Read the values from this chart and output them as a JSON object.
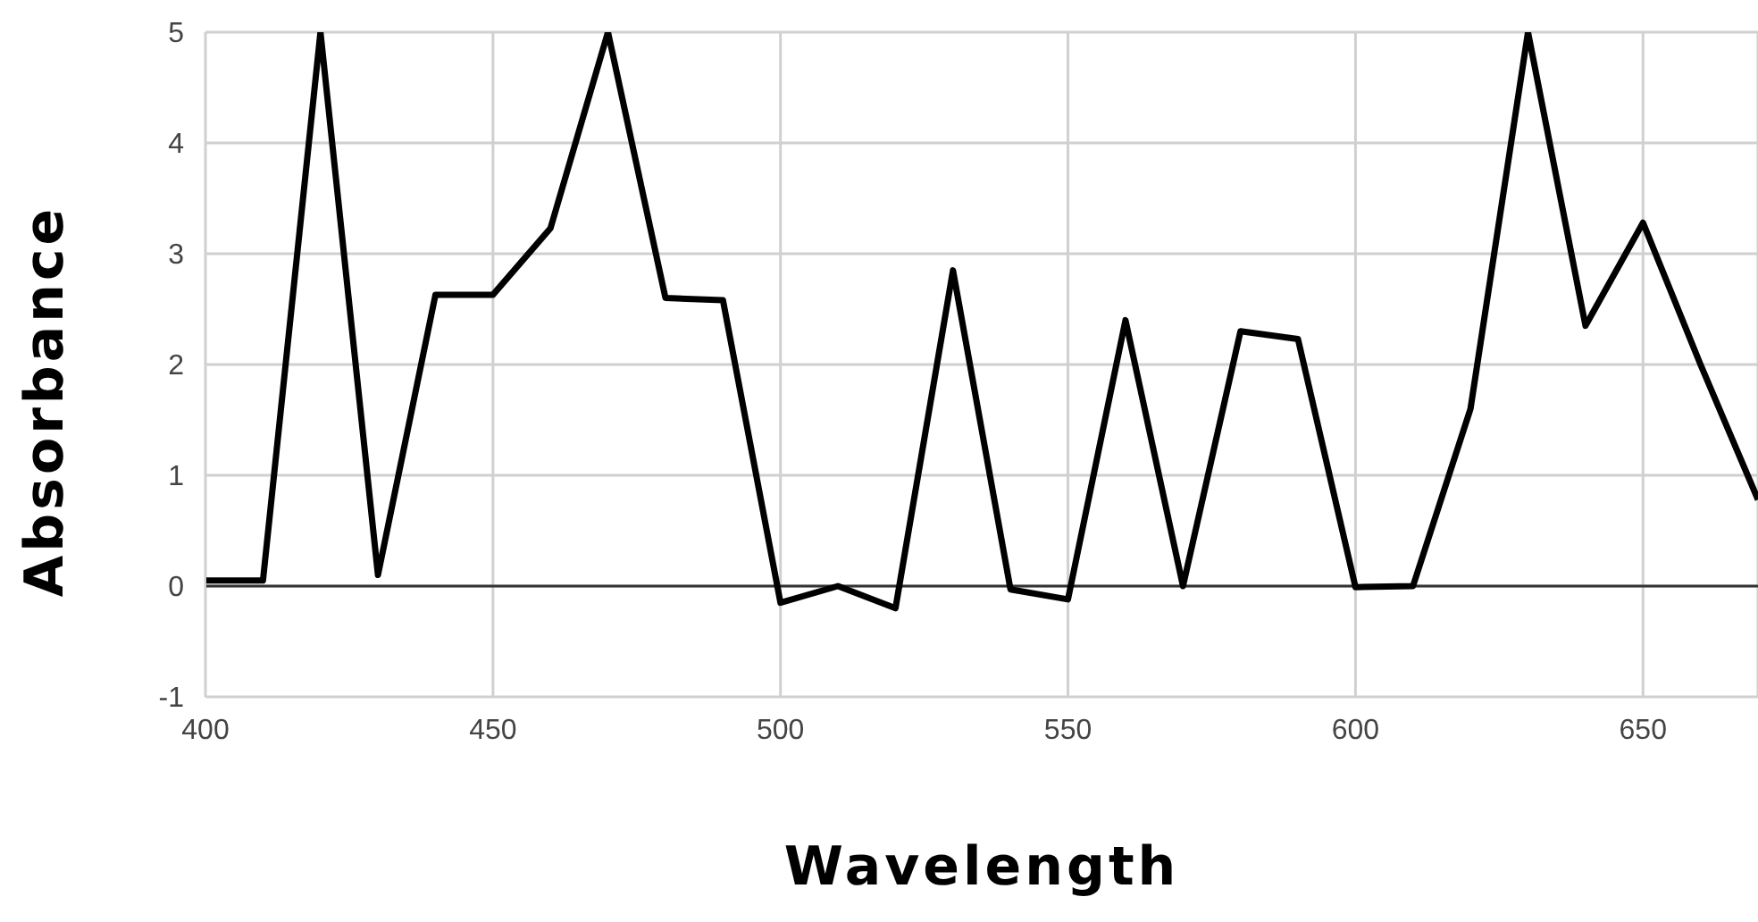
{
  "chart_data": {
    "type": "line",
    "xlabel": "Wavelength",
    "ylabel": "Absorbance",
    "x": [
      400,
      410,
      420,
      430,
      440,
      450,
      460,
      470,
      480,
      490,
      500,
      510,
      520,
      530,
      540,
      550,
      560,
      570,
      580,
      590,
      600,
      610,
      620,
      630,
      640,
      650,
      660,
      670
    ],
    "series": [
      {
        "color": "#000000",
        "values": [
          0.05,
          0.05,
          5,
          0.1,
          2.63,
          2.63,
          3.23,
          5,
          2.6,
          2.58,
          -0.15,
          0,
          -0.2,
          2.85,
          -0.03,
          -0.12,
          2.4,
          0,
          2.3,
          2.23,
          -0.01,
          0,
          1.6,
          5,
          2.35,
          3.28,
          2.0,
          0.78
        ]
      }
    ],
    "xlim": [
      400,
      670
    ],
    "xticks": [
      400,
      450,
      500,
      550,
      600,
      650
    ],
    "ylim": [
      -1,
      5
    ],
    "yticks": [
      -1,
      0,
      1,
      2,
      3,
      4,
      5
    ],
    "grid": true,
    "legend": false,
    "marker": "none",
    "line_style": "solid",
    "ref_lines": [
      {
        "axis": "y",
        "value": 0,
        "color": "#333333"
      }
    ]
  }
}
